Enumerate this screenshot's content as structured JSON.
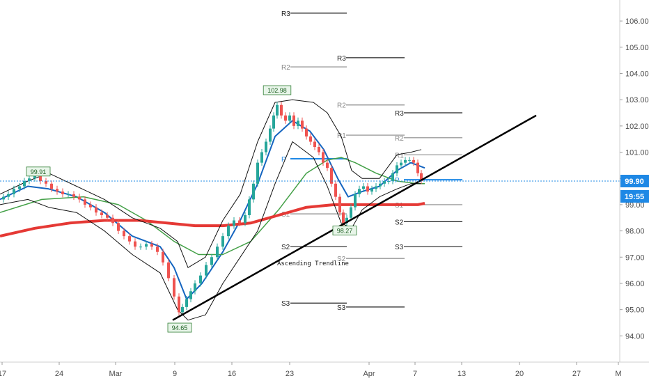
{
  "chart_data": {
    "type": "line",
    "y_axis": {
      "ticks": [
        106.0,
        105.0,
        104.0,
        103.0,
        102.0,
        101.0,
        100.0,
        99.0,
        98.0,
        97.0,
        96.0,
        95.0,
        94.0
      ],
      "tick_labels": [
        "106.00",
        "105.00",
        "104.00",
        "103.00",
        "102.00",
        "101.00",
        "",
        "99.00",
        "98.00",
        "97.00",
        "96.00",
        "95.00",
        "94.00"
      ],
      "ylim": [
        93.0,
        106.8
      ]
    },
    "x_axis": {
      "tick_labels": [
        "17",
        "24",
        "Mar",
        "9",
        "16",
        "23",
        "Apr",
        "7",
        "13",
        "20",
        "27",
        "M"
      ]
    },
    "price": {
      "last": 99.9,
      "last_label": "99.90",
      "countdown_label": "19:55",
      "badge_color": "#1e88e5"
    },
    "candles_path": [
      [
        0,
        99.2
      ],
      [
        5,
        99.3
      ],
      [
        12,
        99.4
      ],
      [
        20,
        99.6
      ],
      [
        28,
        99.7
      ],
      [
        35,
        99.9
      ],
      [
        42,
        100.0
      ],
      [
        50,
        100.1
      ],
      [
        58,
        99.9
      ],
      [
        66,
        99.8
      ],
      [
        74,
        99.6
      ],
      [
        82,
        99.5
      ],
      [
        90,
        99.4
      ],
      [
        98,
        99.4
      ],
      [
        106,
        99.3
      ],
      [
        114,
        99.2
      ],
      [
        122,
        99.0
      ],
      [
        130,
        98.9
      ],
      [
        138,
        98.7
      ],
      [
        146,
        98.6
      ],
      [
        154,
        98.5
      ],
      [
        162,
        98.3
      ],
      [
        170,
        98.0
      ],
      [
        178,
        97.8
      ],
      [
        186,
        97.6
      ],
      [
        194,
        97.4
      ],
      [
        202,
        97.4
      ],
      [
        210,
        97.5
      ],
      [
        218,
        97.4
      ],
      [
        226,
        97.2
      ],
      [
        234,
        96.8
      ],
      [
        242,
        96.2
      ],
      [
        250,
        95.5
      ],
      [
        257,
        94.9
      ],
      [
        262,
        95.1
      ],
      [
        268,
        95.4
      ],
      [
        274,
        95.7
      ],
      [
        280,
        96.0
      ],
      [
        288,
        96.3
      ],
      [
        296,
        96.7
      ],
      [
        304,
        97.0
      ],
      [
        312,
        97.4
      ],
      [
        320,
        97.8
      ],
      [
        328,
        98.2
      ],
      [
        336,
        98.4
      ],
      [
        344,
        98.3
      ],
      [
        352,
        98.6
      ],
      [
        358,
        99.2
      ],
      [
        364,
        99.8
      ],
      [
        370,
        100.6
      ],
      [
        376,
        101.0
      ],
      [
        382,
        101.4
      ],
      [
        388,
        101.9
      ],
      [
        393,
        102.4
      ],
      [
        398,
        102.8
      ],
      [
        404,
        102.4
      ],
      [
        410,
        102.2
      ],
      [
        416,
        102.4
      ],
      [
        422,
        102.0
      ],
      [
        428,
        102.2
      ],
      [
        434,
        101.9
      ],
      [
        440,
        101.6
      ],
      [
        446,
        101.4
      ],
      [
        452,
        101.2
      ],
      [
        458,
        101.0
      ],
      [
        464,
        100.6
      ],
      [
        470,
        100.4
      ],
      [
        476,
        99.8
      ],
      [
        482,
        99.3
      ],
      [
        488,
        98.7
      ],
      [
        493,
        98.3
      ],
      [
        498,
        98.5
      ],
      [
        504,
        98.9
      ],
      [
        510,
        99.4
      ],
      [
        516,
        99.6
      ],
      [
        522,
        99.7
      ],
      [
        528,
        99.5
      ],
      [
        534,
        99.6
      ],
      [
        540,
        99.7
      ],
      [
        546,
        99.8
      ],
      [
        552,
        99.9
      ],
      [
        558,
        99.9
      ],
      [
        564,
        100.2
      ],
      [
        570,
        100.5
      ],
      [
        576,
        100.6
      ],
      [
        582,
        100.7
      ],
      [
        588,
        100.7
      ],
      [
        594,
        100.6
      ],
      [
        600,
        100.2
      ],
      [
        605,
        99.9
      ]
    ],
    "series": [
      {
        "values": [
          [
            0,
            99.2
          ],
          [
            40,
            99.7
          ],
          [
            70,
            99.6
          ],
          [
            110,
            99.3
          ],
          [
            150,
            98.7
          ],
          [
            190,
            97.8
          ],
          [
            230,
            97.4
          ],
          [
            250,
            96.6
          ],
          [
            268,
            95.4
          ],
          [
            290,
            96.0
          ],
          [
            320,
            97.2
          ],
          [
            345,
            98.4
          ],
          [
            370,
            99.8
          ],
          [
            395,
            101.6
          ],
          [
            420,
            102.2
          ],
          [
            445,
            101.8
          ],
          [
            465,
            101.1
          ],
          [
            485,
            100.0
          ],
          [
            500,
            99.3
          ],
          [
            520,
            99.5
          ],
          [
            545,
            99.7
          ],
          [
            570,
            100.3
          ],
          [
            590,
            100.6
          ],
          [
            610,
            100.4
          ]
        ],
        "color": "#1565c0",
        "width": 2
      },
      {
        "values": [
          [
            0,
            98.7
          ],
          [
            60,
            99.2
          ],
          [
            120,
            99.3
          ],
          [
            170,
            99.0
          ],
          [
            210,
            98.4
          ],
          [
            250,
            97.6
          ],
          [
            285,
            97.1
          ],
          [
            320,
            97.1
          ],
          [
            360,
            97.6
          ],
          [
            400,
            98.8
          ],
          [
            440,
            100.2
          ],
          [
            470,
            100.7
          ],
          [
            490,
            100.8
          ],
          [
            510,
            100.6
          ],
          [
            540,
            100.2
          ],
          [
            570,
            99.9
          ],
          [
            600,
            99.8
          ],
          [
            610,
            99.8
          ]
        ],
        "color": "#43a047",
        "width": 1.5
      },
      {
        "values": [
          [
            0,
            97.8
          ],
          [
            50,
            98.1
          ],
          [
            100,
            98.3
          ],
          [
            150,
            98.4
          ],
          [
            200,
            98.4
          ],
          [
            240,
            98.3
          ],
          [
            280,
            98.2
          ],
          [
            320,
            98.2
          ],
          [
            360,
            98.3
          ],
          [
            400,
            98.6
          ],
          [
            440,
            98.9
          ],
          [
            480,
            99.0
          ],
          [
            520,
            99.0
          ],
          [
            560,
            99.0
          ],
          [
            600,
            99.0
          ],
          [
            610,
            99.05
          ]
        ],
        "color": "#e53935",
        "width": 4
      },
      {
        "values": [
          [
            0,
            99.4
          ],
          [
            40,
            99.9
          ],
          [
            70,
            100.2
          ],
          [
            110,
            99.7
          ],
          [
            150,
            99.2
          ],
          [
            190,
            98.5
          ],
          [
            230,
            98.1
          ],
          [
            255,
            97.6
          ],
          [
            270,
            96.6
          ],
          [
            295,
            97.0
          ],
          [
            320,
            98.4
          ],
          [
            345,
            99.4
          ],
          [
            370,
            101.4
          ],
          [
            395,
            102.9
          ],
          [
            420,
            103.0
          ],
          [
            450,
            102.9
          ],
          [
            470,
            102.5
          ],
          [
            490,
            101.6
          ],
          [
            505,
            100.3
          ],
          [
            520,
            100.0
          ],
          [
            545,
            100.0
          ],
          [
            570,
            100.9
          ],
          [
            590,
            101.0
          ],
          [
            605,
            101.1
          ]
        ],
        "color": "#111111",
        "width": 1
      },
      {
        "values": [
          [
            0,
            99.0
          ],
          [
            40,
            99.2
          ],
          [
            70,
            98.9
          ],
          [
            110,
            98.7
          ],
          [
            150,
            98.0
          ],
          [
            190,
            97.1
          ],
          [
            230,
            96.4
          ],
          [
            255,
            95.0
          ],
          [
            270,
            94.6
          ],
          [
            295,
            94.8
          ],
          [
            320,
            96.0
          ],
          [
            345,
            97.0
          ],
          [
            370,
            98.0
          ],
          [
            395,
            99.8
          ],
          [
            420,
            101.4
          ],
          [
            450,
            100.8
          ],
          [
            470,
            99.7
          ],
          [
            490,
            98.3
          ],
          [
            505,
            98.1
          ],
          [
            520,
            98.8
          ],
          [
            545,
            99.3
          ],
          [
            570,
            99.6
          ],
          [
            590,
            99.8
          ],
          [
            605,
            99.8
          ]
        ],
        "color": "#111111",
        "width": 1
      }
    ],
    "trendline": {
      "label": "Ascending Trendline",
      "start": [
        248,
        94.6
      ],
      "end": [
        770,
        102.4
      ],
      "color": "#000000",
      "width": 2.5
    },
    "pivots": [
      {
        "label": "R3",
        "x1": 418,
        "x2": 498,
        "y": 106.3,
        "color": "#222222"
      },
      {
        "label": "R2",
        "x1": 418,
        "x2": 498,
        "y": 104.25,
        "color": "#888888"
      },
      {
        "label": "P",
        "x1": 418,
        "x2": 498,
        "y": 100.75,
        "color": "#1e88e5"
      },
      {
        "label": "S1",
        "x1": 418,
        "x2": 498,
        "y": 98.65,
        "color": "#888888"
      },
      {
        "label": "S2",
        "x1": 418,
        "x2": 498,
        "y": 97.4,
        "color": "#222222"
      },
      {
        "label": "S3",
        "x1": 418,
        "x2": 498,
        "y": 95.25,
        "color": "#222222"
      },
      {
        "label": "R3",
        "x1": 498,
        "x2": 581,
        "y": 104.6,
        "color": "#222222"
      },
      {
        "label": "R2",
        "x1": 498,
        "x2": 581,
        "y": 102.8,
        "color": "#888888"
      },
      {
        "label": "R1",
        "x1": 498,
        "x2": 581,
        "y": 101.65,
        "color": "#888888"
      },
      {
        "label": "S2",
        "x1": 498,
        "x2": 581,
        "y": 96.95,
        "color": "#888888"
      },
      {
        "label": "S3",
        "x1": 498,
        "x2": 581,
        "y": 95.1,
        "color": "#222222"
      },
      {
        "label": "R3",
        "x1": 581,
        "x2": 664,
        "y": 102.5,
        "color": "#222222"
      },
      {
        "label": "R2",
        "x1": 581,
        "x2": 664,
        "y": 101.55,
        "color": "#888888"
      },
      {
        "label": "R1",
        "x1": 581,
        "x2": 664,
        "y": 100.9,
        "color": "#888888"
      },
      {
        "label": "P",
        "x1": 581,
        "x2": 664,
        "y": 99.95,
        "color": "#1e88e5"
      },
      {
        "label": "S1",
        "x1": 581,
        "x2": 664,
        "y": 99.0,
        "color": "#888888"
      },
      {
        "label": "S2",
        "x1": 581,
        "x2": 664,
        "y": 98.35,
        "color": "#222222"
      },
      {
        "label": "S3",
        "x1": 581,
        "x2": 664,
        "y": 97.4,
        "color": "#222222"
      }
    ],
    "extremes": [
      {
        "label": "99.91",
        "x": 55,
        "y": 100.25
      },
      {
        "label": "102.98",
        "x": 398,
        "y": 103.35
      },
      {
        "label": "94.65",
        "x": 258,
        "y": 94.3
      },
      {
        "label": "98.27",
        "x": 495,
        "y": 98.0
      }
    ],
    "grid": false
  }
}
